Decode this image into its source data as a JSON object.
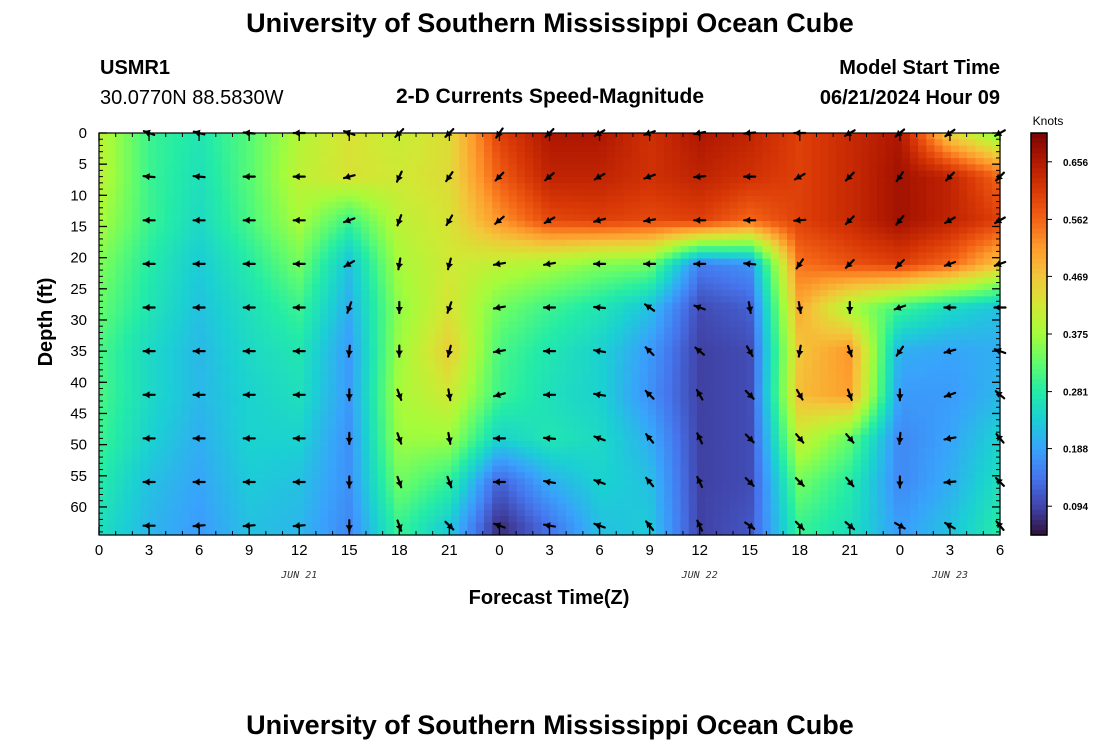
{
  "header": {
    "title": "University of Southern Mississippi Ocean Cube",
    "station": "USMR1",
    "coords": "30.0770N  88.5830W",
    "subtitle": "2-D Currents Speed-Magnitude",
    "model_start_label": "Model Start Time",
    "model_start_value": "06/21/2024 Hour 09"
  },
  "footer": {
    "title": "University of Southern Mississippi Ocean Cube"
  },
  "colors": {
    "colormap": [
      "#30123b",
      "#4145ab",
      "#4675ed",
      "#39a2fc",
      "#1bcfd4",
      "#24eca6",
      "#61fc6c",
      "#a4fc3b",
      "#d1e834",
      "#f3c63a",
      "#fe9b2d",
      "#f36315",
      "#d93806",
      "#b11901",
      "#7a0403"
    ],
    "arrow": "#000000",
    "axis": "#000000"
  },
  "chart_data": {
    "type": "heatmap",
    "title": "2-D Currents Speed-Magnitude",
    "xlabel": "Forecast Time(Z)",
    "ylabel": "Depth (ft)",
    "xlim": [
      0,
      54
    ],
    "ylim": [
      0,
      64.5
    ],
    "x_ticks": [
      0,
      3,
      6,
      9,
      12,
      15,
      18,
      21,
      24,
      27,
      30,
      33,
      36,
      39,
      42,
      45,
      48,
      51,
      54
    ],
    "x_tick_labels": [
      "0",
      "3",
      "6",
      "9",
      "12",
      "15",
      "18",
      "21",
      "0",
      "3",
      "6",
      "9",
      "12",
      "15",
      "18",
      "21",
      "0",
      "3",
      "6"
    ],
    "y_ticks": [
      0,
      5,
      10,
      15,
      20,
      25,
      30,
      35,
      40,
      45,
      50,
      55,
      60
    ],
    "y_tick_labels": [
      "0",
      "5",
      "10",
      "15",
      "20",
      "25",
      "30",
      "35",
      "40",
      "45",
      "50",
      "55",
      "60"
    ],
    "date_labels": [
      {
        "x": 12,
        "label": "JUN 21"
      },
      {
        "x": 36,
        "label": "JUN 22"
      },
      {
        "x": 51,
        "label": "JUN 23"
      }
    ],
    "colorbar": {
      "unit": "Knots",
      "min": 0.047,
      "max": 0.703,
      "ticks": [
        0.094,
        0.188,
        0.281,
        0.375,
        0.469,
        0.562,
        0.656
      ],
      "tick_labels": [
        "0.094",
        "0.188",
        "0.281",
        "0.375",
        "0.469",
        "0.562",
        "0.656"
      ]
    },
    "x_samples": [
      0,
      3,
      6,
      9,
      12,
      15,
      18,
      21,
      24,
      27,
      30,
      33,
      36,
      39,
      42,
      45,
      48,
      51,
      54
    ],
    "depth_samples": [
      0,
      7,
      14,
      21,
      28,
      35,
      42,
      49,
      56,
      63
    ],
    "speed_knots": [
      [
        0.4,
        0.3,
        0.27,
        0.32,
        0.39,
        0.43,
        0.41,
        0.44,
        0.6,
        0.66,
        0.66,
        0.62,
        0.66,
        0.64,
        0.6,
        0.63,
        0.66,
        0.45,
        0.35
      ],
      [
        0.4,
        0.3,
        0.26,
        0.32,
        0.4,
        0.43,
        0.42,
        0.44,
        0.57,
        0.64,
        0.64,
        0.62,
        0.64,
        0.62,
        0.6,
        0.63,
        0.67,
        0.64,
        0.56
      ],
      [
        0.38,
        0.3,
        0.25,
        0.31,
        0.38,
        0.3,
        0.4,
        0.43,
        0.52,
        0.59,
        0.6,
        0.59,
        0.6,
        0.56,
        0.6,
        0.63,
        0.67,
        0.64,
        0.6
      ],
      [
        0.35,
        0.28,
        0.23,
        0.28,
        0.34,
        0.22,
        0.38,
        0.42,
        0.4,
        0.38,
        0.35,
        0.34,
        0.15,
        0.17,
        0.55,
        0.58,
        0.6,
        0.56,
        0.47
      ],
      [
        0.33,
        0.27,
        0.22,
        0.26,
        0.3,
        0.2,
        0.36,
        0.43,
        0.34,
        0.3,
        0.27,
        0.22,
        0.1,
        0.12,
        0.5,
        0.38,
        0.3,
        0.25,
        0.22
      ],
      [
        0.31,
        0.25,
        0.21,
        0.25,
        0.27,
        0.18,
        0.37,
        0.46,
        0.31,
        0.27,
        0.24,
        0.18,
        0.09,
        0.1,
        0.47,
        0.52,
        0.2,
        0.19,
        0.2
      ],
      [
        0.31,
        0.25,
        0.21,
        0.24,
        0.26,
        0.18,
        0.38,
        0.42,
        0.3,
        0.26,
        0.24,
        0.17,
        0.09,
        0.1,
        0.48,
        0.51,
        0.18,
        0.18,
        0.21
      ],
      [
        0.3,
        0.24,
        0.2,
        0.24,
        0.24,
        0.17,
        0.37,
        0.37,
        0.24,
        0.27,
        0.25,
        0.2,
        0.09,
        0.1,
        0.41,
        0.33,
        0.16,
        0.19,
        0.24
      ],
      [
        0.28,
        0.22,
        0.19,
        0.23,
        0.22,
        0.17,
        0.34,
        0.29,
        0.12,
        0.2,
        0.24,
        0.22,
        0.09,
        0.1,
        0.34,
        0.28,
        0.16,
        0.2,
        0.26
      ],
      [
        0.26,
        0.21,
        0.18,
        0.22,
        0.21,
        0.16,
        0.3,
        0.23,
        0.07,
        0.14,
        0.22,
        0.23,
        0.09,
        0.11,
        0.3,
        0.26,
        0.18,
        0.22,
        0.28
      ]
    ],
    "arrows": {
      "x_samples": [
        3,
        6,
        9,
        12,
        15,
        18,
        21,
        24,
        27,
        30,
        33,
        36,
        39,
        42,
        45,
        48,
        51,
        54
      ],
      "depth_samples": [
        0,
        7,
        14,
        21,
        28,
        35,
        42,
        49,
        56,
        63
      ],
      "direction_deg_clockwise_from_east": [
        [
          200,
          195,
          185,
          180,
          200,
          135,
          135,
          125,
          135,
          150,
          160,
          170,
          175,
          180,
          150,
          140,
          145,
          150
        ],
        [
          185,
          185,
          180,
          180,
          165,
          115,
          125,
          135,
          140,
          150,
          160,
          175,
          180,
          150,
          135,
          125,
          135,
          135
        ],
        [
          180,
          180,
          180,
          180,
          160,
          110,
          120,
          140,
          150,
          165,
          170,
          180,
          180,
          175,
          135,
          130,
          150,
          150
        ],
        [
          180,
          180,
          180,
          180,
          150,
          100,
          105,
          170,
          170,
          180,
          180,
          180,
          185,
          125,
          135,
          135,
          160,
          160
        ],
        [
          180,
          180,
          180,
          180,
          110,
          90,
          110,
          170,
          180,
          185,
          215,
          200,
          80,
          80,
          90,
          160,
          180,
          180
        ],
        [
          180,
          180,
          180,
          180,
          95,
          90,
          105,
          170,
          180,
          190,
          225,
          220,
          60,
          100,
          70,
          125,
          165,
          200
        ],
        [
          180,
          180,
          180,
          180,
          90,
          70,
          80,
          165,
          180,
          190,
          225,
          240,
          45,
          60,
          70,
          90,
          160,
          220
        ],
        [
          180,
          180,
          180,
          180,
          90,
          70,
          80,
          180,
          185,
          200,
          230,
          245,
          45,
          50,
          50,
          95,
          170,
          230
        ],
        [
          180,
          180,
          180,
          180,
          90,
          70,
          70,
          180,
          190,
          200,
          230,
          245,
          45,
          45,
          50,
          90,
          175,
          225
        ],
        [
          180,
          175,
          175,
          175,
          90,
          70,
          45,
          200,
          190,
          200,
          230,
          245,
          35,
          45,
          40,
          30,
          210,
          230
        ]
      ]
    }
  }
}
